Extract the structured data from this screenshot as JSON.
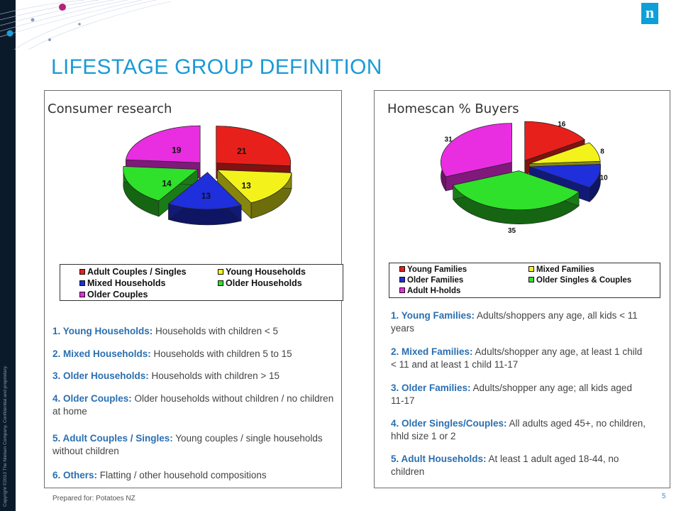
{
  "slide": {
    "title": "LIFESTAGE GROUP DEFINITION",
    "copyright": "Copyright ©2013 The Nielsen Company. Confidential and proprietary.",
    "logo_letter": "n",
    "footer": "Prepared for: Potatoes NZ",
    "page_number": "5",
    "accent_color": "#1a9ad6"
  },
  "left_panel": {
    "title": "Consumer research",
    "pie": {
      "type": "pie",
      "categories": [
        "Adult Couples / Singles",
        "Young Households",
        "Mixed Households",
        "Older Households",
        "Older Couples"
      ],
      "values": [
        21,
        13,
        13,
        14,
        19
      ],
      "labels": [
        "21",
        "13",
        "13",
        "14",
        "19"
      ],
      "colors": [
        "#e8201c",
        "#f3f31b",
        "#1f2fdb",
        "#2fe12a",
        "#e82ee0"
      ]
    },
    "legend": [
      {
        "label": "Adult Couples / Singles",
        "color": "#e8201c"
      },
      {
        "label": "Young Households",
        "color": "#f3f31b"
      },
      {
        "label": "Mixed Households",
        "color": "#1f2fdb"
      },
      {
        "label": "Older Households",
        "color": "#2fe12a"
      },
      {
        "label": "Older Couples",
        "color": "#e82ee0"
      }
    ],
    "definitions": [
      {
        "term": "1. Young Households:",
        "text": " Households with children < 5"
      },
      {
        "term": "2. Mixed Households:",
        "text": " Households with children 5 to 15"
      },
      {
        "term": "3. Older Households:",
        "text": " Households with children > 15"
      },
      {
        "term": "4. Older Couples:",
        "text": " Older households without children / no children at home"
      },
      {
        "term": "5. Adult Couples / Singles:",
        "text": "  Young couples / single households without children"
      },
      {
        "term": "6. Others:",
        "text": " Flatting / other household compositions"
      }
    ]
  },
  "right_panel": {
    "title": "Homescan % Buyers",
    "pie": {
      "type": "pie",
      "categories": [
        "Young Families",
        "Mixed Families",
        "Older Families",
        "Older Singles & Couples",
        "Adult H-holds"
      ],
      "values": [
        16,
        8,
        10,
        35,
        31
      ],
      "labels": [
        "16",
        "8",
        "10",
        "35",
        "31"
      ],
      "colors": [
        "#e8201c",
        "#f3f31b",
        "#1f2fdb",
        "#2fe12a",
        "#e82ee0"
      ]
    },
    "legend": [
      {
        "label": "Young Families",
        "color": "#e8201c"
      },
      {
        "label": "Mixed Families",
        "color": "#f3f31b"
      },
      {
        "label": "Older Families",
        "color": "#1f2fdb"
      },
      {
        "label": "Older Singles & Couples",
        "color": "#2fe12a"
      },
      {
        "label": "Adult H-holds",
        "color": "#e82ee0"
      }
    ],
    "definitions": [
      {
        "term": "1. Young Families:",
        "text": "  Adults/shoppers any age, all kids < 11 years"
      },
      {
        "term": "2. Mixed Families:",
        "text": " Adults/shopper any age, at least 1 child < 11 and at least 1 child 11-17"
      },
      {
        "term": "3. Older Families:",
        "text": " Adults/shopper any age; all kids aged 11-17"
      },
      {
        "term": "4. Older Singles/Couples:",
        "text": " All adults aged 45+, no children, hhld size 1 or 2"
      },
      {
        "term": "5. Adult Households:",
        "text": " At least 1 adult aged 18-44, no children"
      }
    ]
  }
}
